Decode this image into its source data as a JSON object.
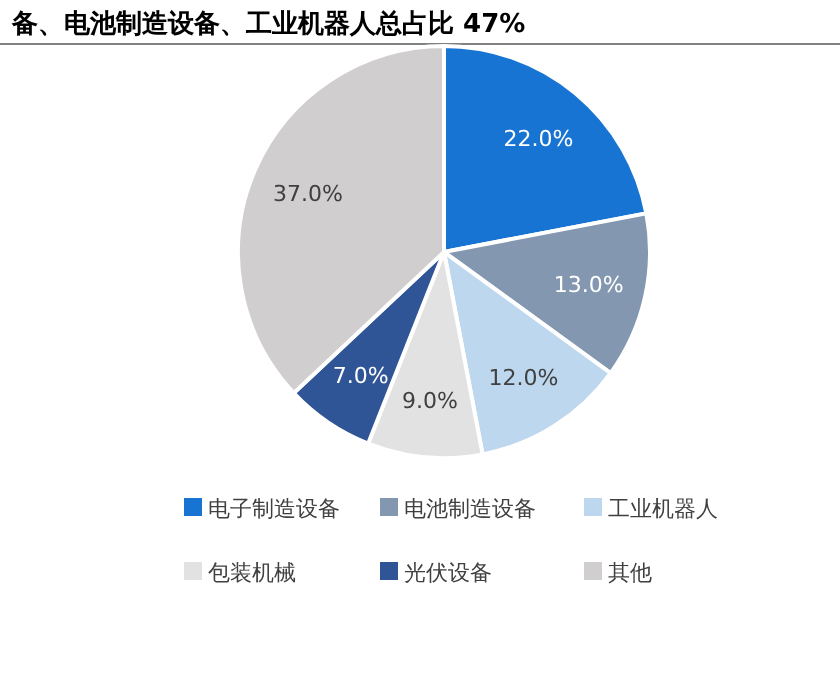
{
  "chart_data": {
    "type": "pie",
    "title": "备、电池制造设备、工业机器人总占比 47%",
    "categories": [
      "电子制造设备",
      "电池制造设备",
      "工业机器人",
      "包装机械",
      "光伏设备",
      "其他"
    ],
    "values": [
      22.0,
      13.0,
      12.0,
      9.0,
      7.0,
      37.0
    ],
    "colors": [
      "#1874d2",
      "#8497b0",
      "#bdd7ee",
      "#e2e2e2",
      "#2f5597",
      "#d0cece"
    ],
    "value_labels": [
      "22.0%",
      "13.0%",
      "12.0%",
      "9.0%",
      "7.0%",
      "37.0%"
    ],
    "legend": "bottom"
  }
}
